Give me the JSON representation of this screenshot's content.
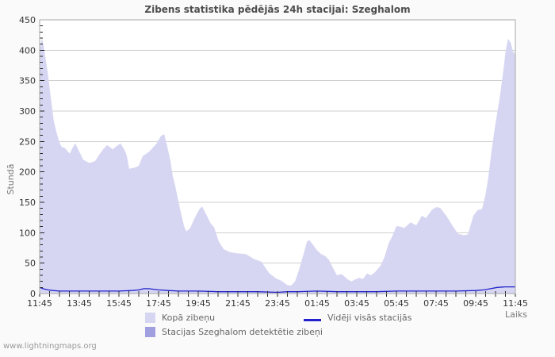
{
  "title": "Zibens statistika pēdējās 24h stacijai: Szeghalom",
  "watermark": "www.lightningmaps.org",
  "axes": {
    "y_label": "Stundā",
    "x_label": "Laiks"
  },
  "legend": [
    {
      "label": "Kopā zibeņu",
      "swatch": "area",
      "color": "#d6d6f2"
    },
    {
      "label": "Stacijas Szeghalom detektētie zibeņi",
      "swatch": "area",
      "color": "#a0a0e0"
    },
    {
      "label": "Vidēji visās stacijās",
      "swatch": "line",
      "color": "#2222cc"
    }
  ],
  "chart_data": {
    "type": "area",
    "title": "Zibens statistika pēdējās 24h stacijai: Szeghalom",
    "xlabel": "Laiks",
    "ylabel": "Stundā",
    "x_axis": {
      "start_time": "11:45",
      "range_minutes": [
        0,
        1440
      ],
      "major_tick_every_minutes": 120,
      "minor_tick_every_minutes": 30,
      "tick_labels": [
        "11:45",
        "13:45",
        "15:45",
        "17:45",
        "19:45",
        "21:45",
        "23:45",
        "01:45",
        "03:45",
        "05:45",
        "07:45",
        "09:45",
        "11:45"
      ]
    },
    "y_axis": {
      "min": 0,
      "max": 450,
      "major_step": 50,
      "minor_step": 10
    },
    "grid": true,
    "legend_position": "bottom",
    "series": [
      {
        "name": "Kopā zibeņu",
        "key": "total",
        "style": "area",
        "color": "#d6d6f2",
        "points": [
          [
            0,
            400
          ],
          [
            7,
            420
          ],
          [
            12,
            408
          ],
          [
            17,
            390
          ],
          [
            24,
            365
          ],
          [
            29,
            343
          ],
          [
            36,
            313
          ],
          [
            43,
            283
          ],
          [
            53,
            261
          ],
          [
            60,
            248
          ],
          [
            67,
            241
          ],
          [
            77,
            239
          ],
          [
            91,
            230
          ],
          [
            100,
            240
          ],
          [
            108,
            247
          ],
          [
            118,
            235
          ],
          [
            125,
            228
          ],
          [
            132,
            220
          ],
          [
            149,
            215
          ],
          [
            160,
            216
          ],
          [
            168,
            218
          ],
          [
            180,
            228
          ],
          [
            192,
            237
          ],
          [
            204,
            244
          ],
          [
            215,
            240
          ],
          [
            221,
            237
          ],
          [
            232,
            242
          ],
          [
            245,
            247
          ],
          [
            258,
            235
          ],
          [
            264,
            226
          ],
          [
            271,
            205
          ],
          [
            288,
            207
          ],
          [
            300,
            210
          ],
          [
            312,
            226
          ],
          [
            331,
            233
          ],
          [
            353,
            246
          ],
          [
            367,
            259
          ],
          [
            377,
            262
          ],
          [
            385,
            245
          ],
          [
            396,
            218
          ],
          [
            403,
            193
          ],
          [
            408,
            183
          ],
          [
            425,
            139
          ],
          [
            437,
            111
          ],
          [
            444,
            102
          ],
          [
            456,
            108
          ],
          [
            470,
            125
          ],
          [
            485,
            140
          ],
          [
            492,
            143
          ],
          [
            504,
            130
          ],
          [
            518,
            115
          ],
          [
            528,
            109
          ],
          [
            542,
            86
          ],
          [
            557,
            73
          ],
          [
            576,
            68
          ],
          [
            600,
            66
          ],
          [
            624,
            65
          ],
          [
            648,
            57
          ],
          [
            672,
            52
          ],
          [
            686,
            40
          ],
          [
            696,
            33
          ],
          [
            715,
            25
          ],
          [
            732,
            21
          ],
          [
            749,
            14
          ],
          [
            761,
            13
          ],
          [
            773,
            20
          ],
          [
            785,
            39
          ],
          [
            799,
            65
          ],
          [
            809,
            85
          ],
          [
            816,
            88
          ],
          [
            828,
            80
          ],
          [
            840,
            71
          ],
          [
            852,
            65
          ],
          [
            864,
            62
          ],
          [
            876,
            55
          ],
          [
            888,
            42
          ],
          [
            900,
            30
          ],
          [
            912,
            32
          ],
          [
            919,
            30
          ],
          [
            931,
            24
          ],
          [
            943,
            20
          ],
          [
            955,
            23
          ],
          [
            967,
            26
          ],
          [
            979,
            24
          ],
          [
            991,
            33
          ],
          [
            1003,
            30
          ],
          [
            1015,
            35
          ],
          [
            1032,
            46
          ],
          [
            1044,
            60
          ],
          [
            1056,
            82
          ],
          [
            1068,
            95
          ],
          [
            1080,
            111
          ],
          [
            1092,
            110
          ],
          [
            1104,
            108
          ],
          [
            1123,
            117
          ],
          [
            1140,
            112
          ],
          [
            1157,
            128
          ],
          [
            1169,
            124
          ],
          [
            1188,
            138
          ],
          [
            1200,
            142
          ],
          [
            1212,
            141
          ],
          [
            1231,
            128
          ],
          [
            1248,
            113
          ],
          [
            1267,
            98
          ],
          [
            1284,
            96
          ],
          [
            1296,
            97
          ],
          [
            1313,
            128
          ],
          [
            1325,
            137
          ],
          [
            1339,
            139
          ],
          [
            1349,
            161
          ],
          [
            1358,
            190
          ],
          [
            1368,
            235
          ],
          [
            1380,
            280
          ],
          [
            1392,
            320
          ],
          [
            1402,
            360
          ],
          [
            1411,
            400
          ],
          [
            1418,
            419
          ],
          [
            1426,
            412
          ],
          [
            1433,
            398
          ],
          [
            1440,
            393
          ]
        ]
      },
      {
        "name": "Stacijas Szeghalom detektētie zibeņi",
        "key": "station",
        "style": "area",
        "color": "#a0a0e0",
        "points": [
          [
            0,
            0
          ],
          [
            1440,
            0
          ]
        ]
      },
      {
        "name": "Vidēji visās stacijās",
        "key": "average",
        "style": "line",
        "color": "#2222cc",
        "points": [
          [
            0,
            10
          ],
          [
            10,
            8
          ],
          [
            25,
            6
          ],
          [
            40,
            5
          ],
          [
            60,
            4
          ],
          [
            120,
            4
          ],
          [
            180,
            4
          ],
          [
            240,
            4
          ],
          [
            280,
            5
          ],
          [
            300,
            6
          ],
          [
            315,
            8
          ],
          [
            330,
            8
          ],
          [
            345,
            7
          ],
          [
            360,
            6
          ],
          [
            390,
            5
          ],
          [
            420,
            4
          ],
          [
            480,
            4
          ],
          [
            540,
            3
          ],
          [
            600,
            3
          ],
          [
            660,
            3
          ],
          [
            720,
            2
          ],
          [
            750,
            3
          ],
          [
            780,
            3
          ],
          [
            840,
            4
          ],
          [
            900,
            3
          ],
          [
            960,
            3
          ],
          [
            1020,
            3
          ],
          [
            1080,
            4
          ],
          [
            1140,
            4
          ],
          [
            1200,
            4
          ],
          [
            1260,
            4
          ],
          [
            1320,
            5
          ],
          [
            1345,
            6
          ],
          [
            1365,
            8
          ],
          [
            1385,
            10
          ],
          [
            1410,
            11
          ],
          [
            1440,
            11
          ]
        ]
      }
    ]
  }
}
